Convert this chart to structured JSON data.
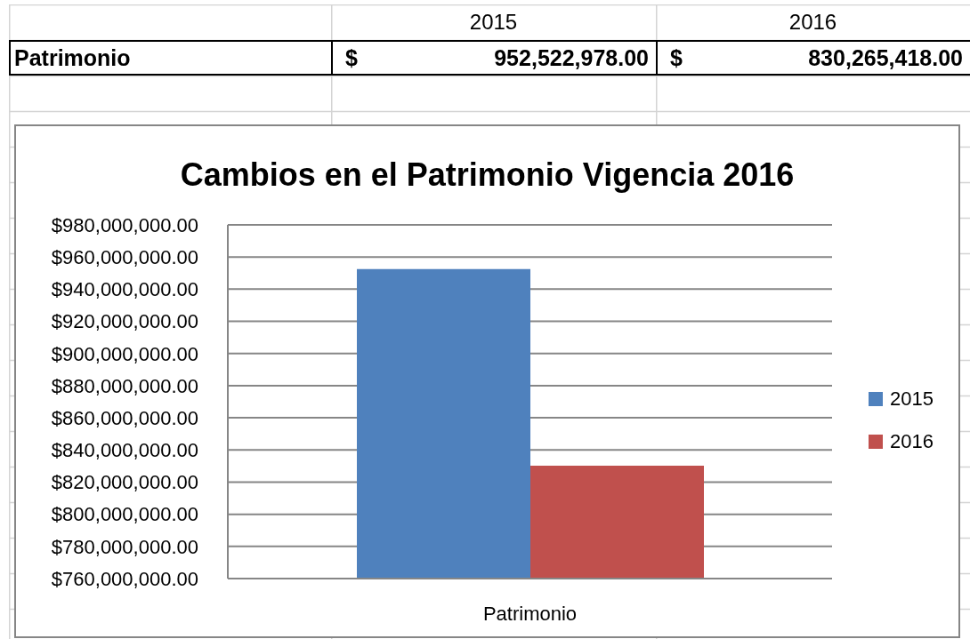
{
  "chart_data": {
    "type": "bar",
    "title": "Cambios en el Patrimonio Vigencia 2016",
    "categories": [
      "Patrimonio"
    ],
    "series": [
      {
        "name": "2015",
        "color": "#4f81bd",
        "values": [
          952522978
        ],
        "value_labels": [
          "$ 952,522,978.00"
        ]
      },
      {
        "name": "2016",
        "color": "#c0504d",
        "values": [
          830265418
        ],
        "value_labels": [
          "$ 830,265,418.00"
        ]
      }
    ],
    "ylim": [
      760000000,
      980000000
    ],
    "yticks": [
      {
        "value": 760000000,
        "label": "$760,000,000.00"
      },
      {
        "value": 780000000,
        "label": "$780,000,000.00"
      },
      {
        "value": 800000000,
        "label": "$800,000,000.00"
      },
      {
        "value": 820000000,
        "label": "$820,000,000.00"
      },
      {
        "value": 840000000,
        "label": "$840,000,000.00"
      },
      {
        "value": 860000000,
        "label": "$860,000,000.00"
      },
      {
        "value": 880000000,
        "label": "$880,000,000.00"
      },
      {
        "value": 900000000,
        "label": "$900,000,000.00"
      },
      {
        "value": 920000000,
        "label": "$920,000,000.00"
      },
      {
        "value": 940000000,
        "label": "$940,000,000.00"
      },
      {
        "value": 960000000,
        "label": "$960,000,000.00"
      },
      {
        "value": 980000000,
        "label": "$980,000,000.00"
      }
    ],
    "grid": "y",
    "legend": "right"
  }
}
